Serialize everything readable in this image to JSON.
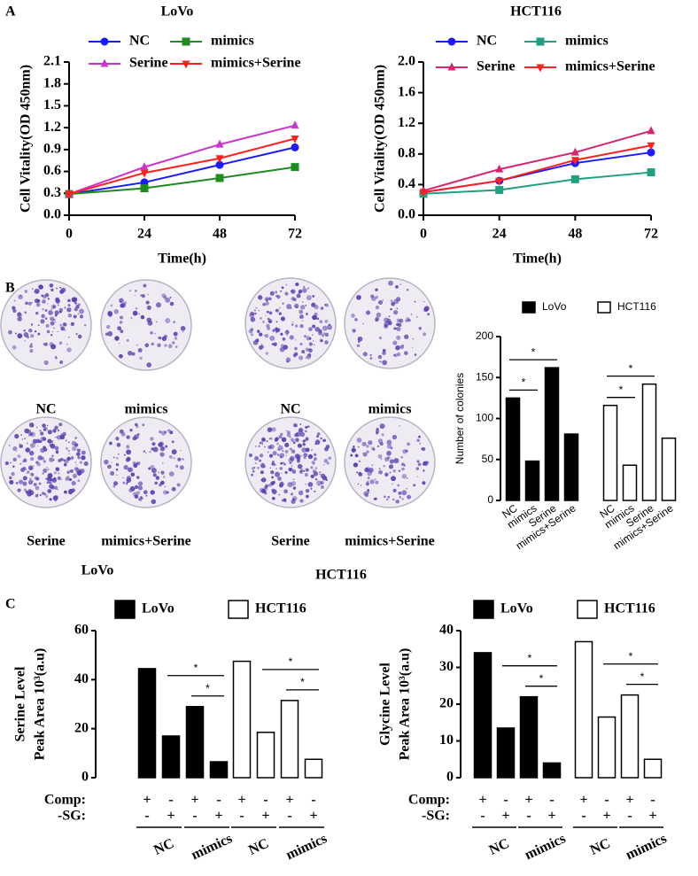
{
  "panel_labels": [
    "A",
    "B",
    "C"
  ],
  "colony_images": {
    "labels": [
      "NC",
      "mimics",
      "Serine",
      "mimics+Serine"
    ],
    "cell_lines": [
      "LoVo",
      "HCT116"
    ]
  },
  "chart_data": [
    {
      "type": "line",
      "title": "LoVo",
      "xlabel": "Time(h)",
      "ylabel": "Cell Vitality(OD 450nm)",
      "x": [
        0,
        24,
        48,
        72
      ],
      "xlim": [
        0,
        72
      ],
      "xticks": [
        0,
        24,
        48,
        72
      ],
      "ylim": [
        0,
        2.1
      ],
      "yticks": [
        {
          "value": 0,
          "label": "0.0"
        },
        0.3,
        0.6,
        0.9,
        1.2,
        1.5,
        1.8,
        2.1
      ],
      "series": [
        {
          "name": "NC",
          "color": "#1a1aff",
          "marker": "circle",
          "values": [
            0.29,
            0.45,
            0.69,
            0.93
          ]
        },
        {
          "name": "mimics",
          "color": "#1e8c1e",
          "marker": "square",
          "values": [
            0.29,
            0.37,
            0.51,
            0.66
          ]
        },
        {
          "name": "Serine",
          "color": "#cc33cc",
          "marker": "triangle-up",
          "values": [
            0.29,
            0.66,
            0.97,
            1.23
          ]
        },
        {
          "name": "mimics+Serine",
          "color": "#ff2020",
          "marker": "triangle-down",
          "values": [
            0.29,
            0.58,
            0.78,
            1.05
          ]
        }
      ]
    },
    {
      "type": "line",
      "title": "HCT116",
      "xlabel": "Time(h)",
      "ylabel": "Cell Vitality(OD 450nm)",
      "x": [
        0,
        24,
        48,
        72
      ],
      "xlim": [
        0,
        72
      ],
      "xticks": [
        0,
        24,
        48,
        72
      ],
      "ylim": [
        0,
        2.0
      ],
      "yticks": [
        {
          "value": 0,
          "label": "0.0"
        },
        0.4,
        0.8,
        1.2,
        1.6,
        {
          "value": 2.0,
          "label": "2.0"
        }
      ],
      "series": [
        {
          "name": "NC",
          "color": "#1a1aff",
          "marker": "circle",
          "values": [
            0.3,
            0.45,
            0.68,
            0.82
          ]
        },
        {
          "name": "mimics",
          "color": "#20a080",
          "marker": "square",
          "values": [
            0.28,
            0.33,
            0.47,
            0.56
          ]
        },
        {
          "name": "Serine",
          "color": "#d6246e",
          "marker": "triangle-up",
          "values": [
            0.32,
            0.6,
            0.82,
            1.1
          ]
        },
        {
          "name": "mimics+Serine",
          "color": "#ff2020",
          "marker": "triangle-down",
          "values": [
            0.3,
            0.45,
            0.72,
            0.91
          ]
        }
      ]
    },
    {
      "type": "bar",
      "ylabel": "Number of colonies",
      "categories": [
        "NC",
        "mimics",
        "Serine",
        "mimics+Serine"
      ],
      "ylim": [
        0,
        200
      ],
      "yticks": [
        0,
        50,
        100,
        150,
        200
      ],
      "series": [
        {
          "name": "LoVo",
          "color": "#000000",
          "values": [
            125,
            48,
            162,
            81
          ]
        },
        {
          "name": "HCT116",
          "color": "#ffffff",
          "values": [
            116,
            43,
            142,
            76
          ]
        }
      ],
      "annotations": [
        "*",
        "*",
        "*",
        "*"
      ]
    },
    {
      "type": "bar",
      "ylabel": [
        "Serine Level",
        "Peak Area  10³(a.u)"
      ],
      "ylim": [
        0,
        60
      ],
      "yticks": [
        0,
        20,
        40,
        60
      ],
      "series": [
        {
          "name": "LoVo",
          "color": "#000000",
          "values": [
            44.5,
            17,
            29,
            6.5
          ]
        },
        {
          "name": "HCT116",
          "color": "#ffffff",
          "values": [
            47.5,
            18.5,
            31.5,
            7.5
          ]
        }
      ],
      "row_labels": [
        "Comp:",
        "-SG:"
      ],
      "comp": [
        "+",
        "-",
        "+",
        "-"
      ],
      "sg": [
        "-",
        "+",
        "-",
        "+"
      ],
      "groups": [
        "NC",
        "mimics"
      ],
      "annotations": [
        "*",
        "*",
        "*",
        "*"
      ]
    },
    {
      "type": "bar",
      "ylabel": [
        "Glycine Level",
        "Peak Area  10³(a.u)"
      ],
      "ylim": [
        0,
        40
      ],
      "yticks": [
        0,
        10,
        20,
        30,
        40
      ],
      "series": [
        {
          "name": "LoVo",
          "color": "#000000",
          "values": [
            34,
            13.5,
            22,
            4
          ]
        },
        {
          "name": "HCT116",
          "color": "#ffffff",
          "values": [
            37,
            16.5,
            22.5,
            5
          ]
        }
      ],
      "row_labels": [
        "Comp:",
        "-SG:"
      ],
      "comp": [
        "+",
        "-",
        "+",
        "-"
      ],
      "sg": [
        "-",
        "+",
        "-",
        "+"
      ],
      "groups": [
        "NC",
        "mimics"
      ],
      "annotations": [
        "*",
        "*",
        "*",
        "*"
      ]
    }
  ]
}
